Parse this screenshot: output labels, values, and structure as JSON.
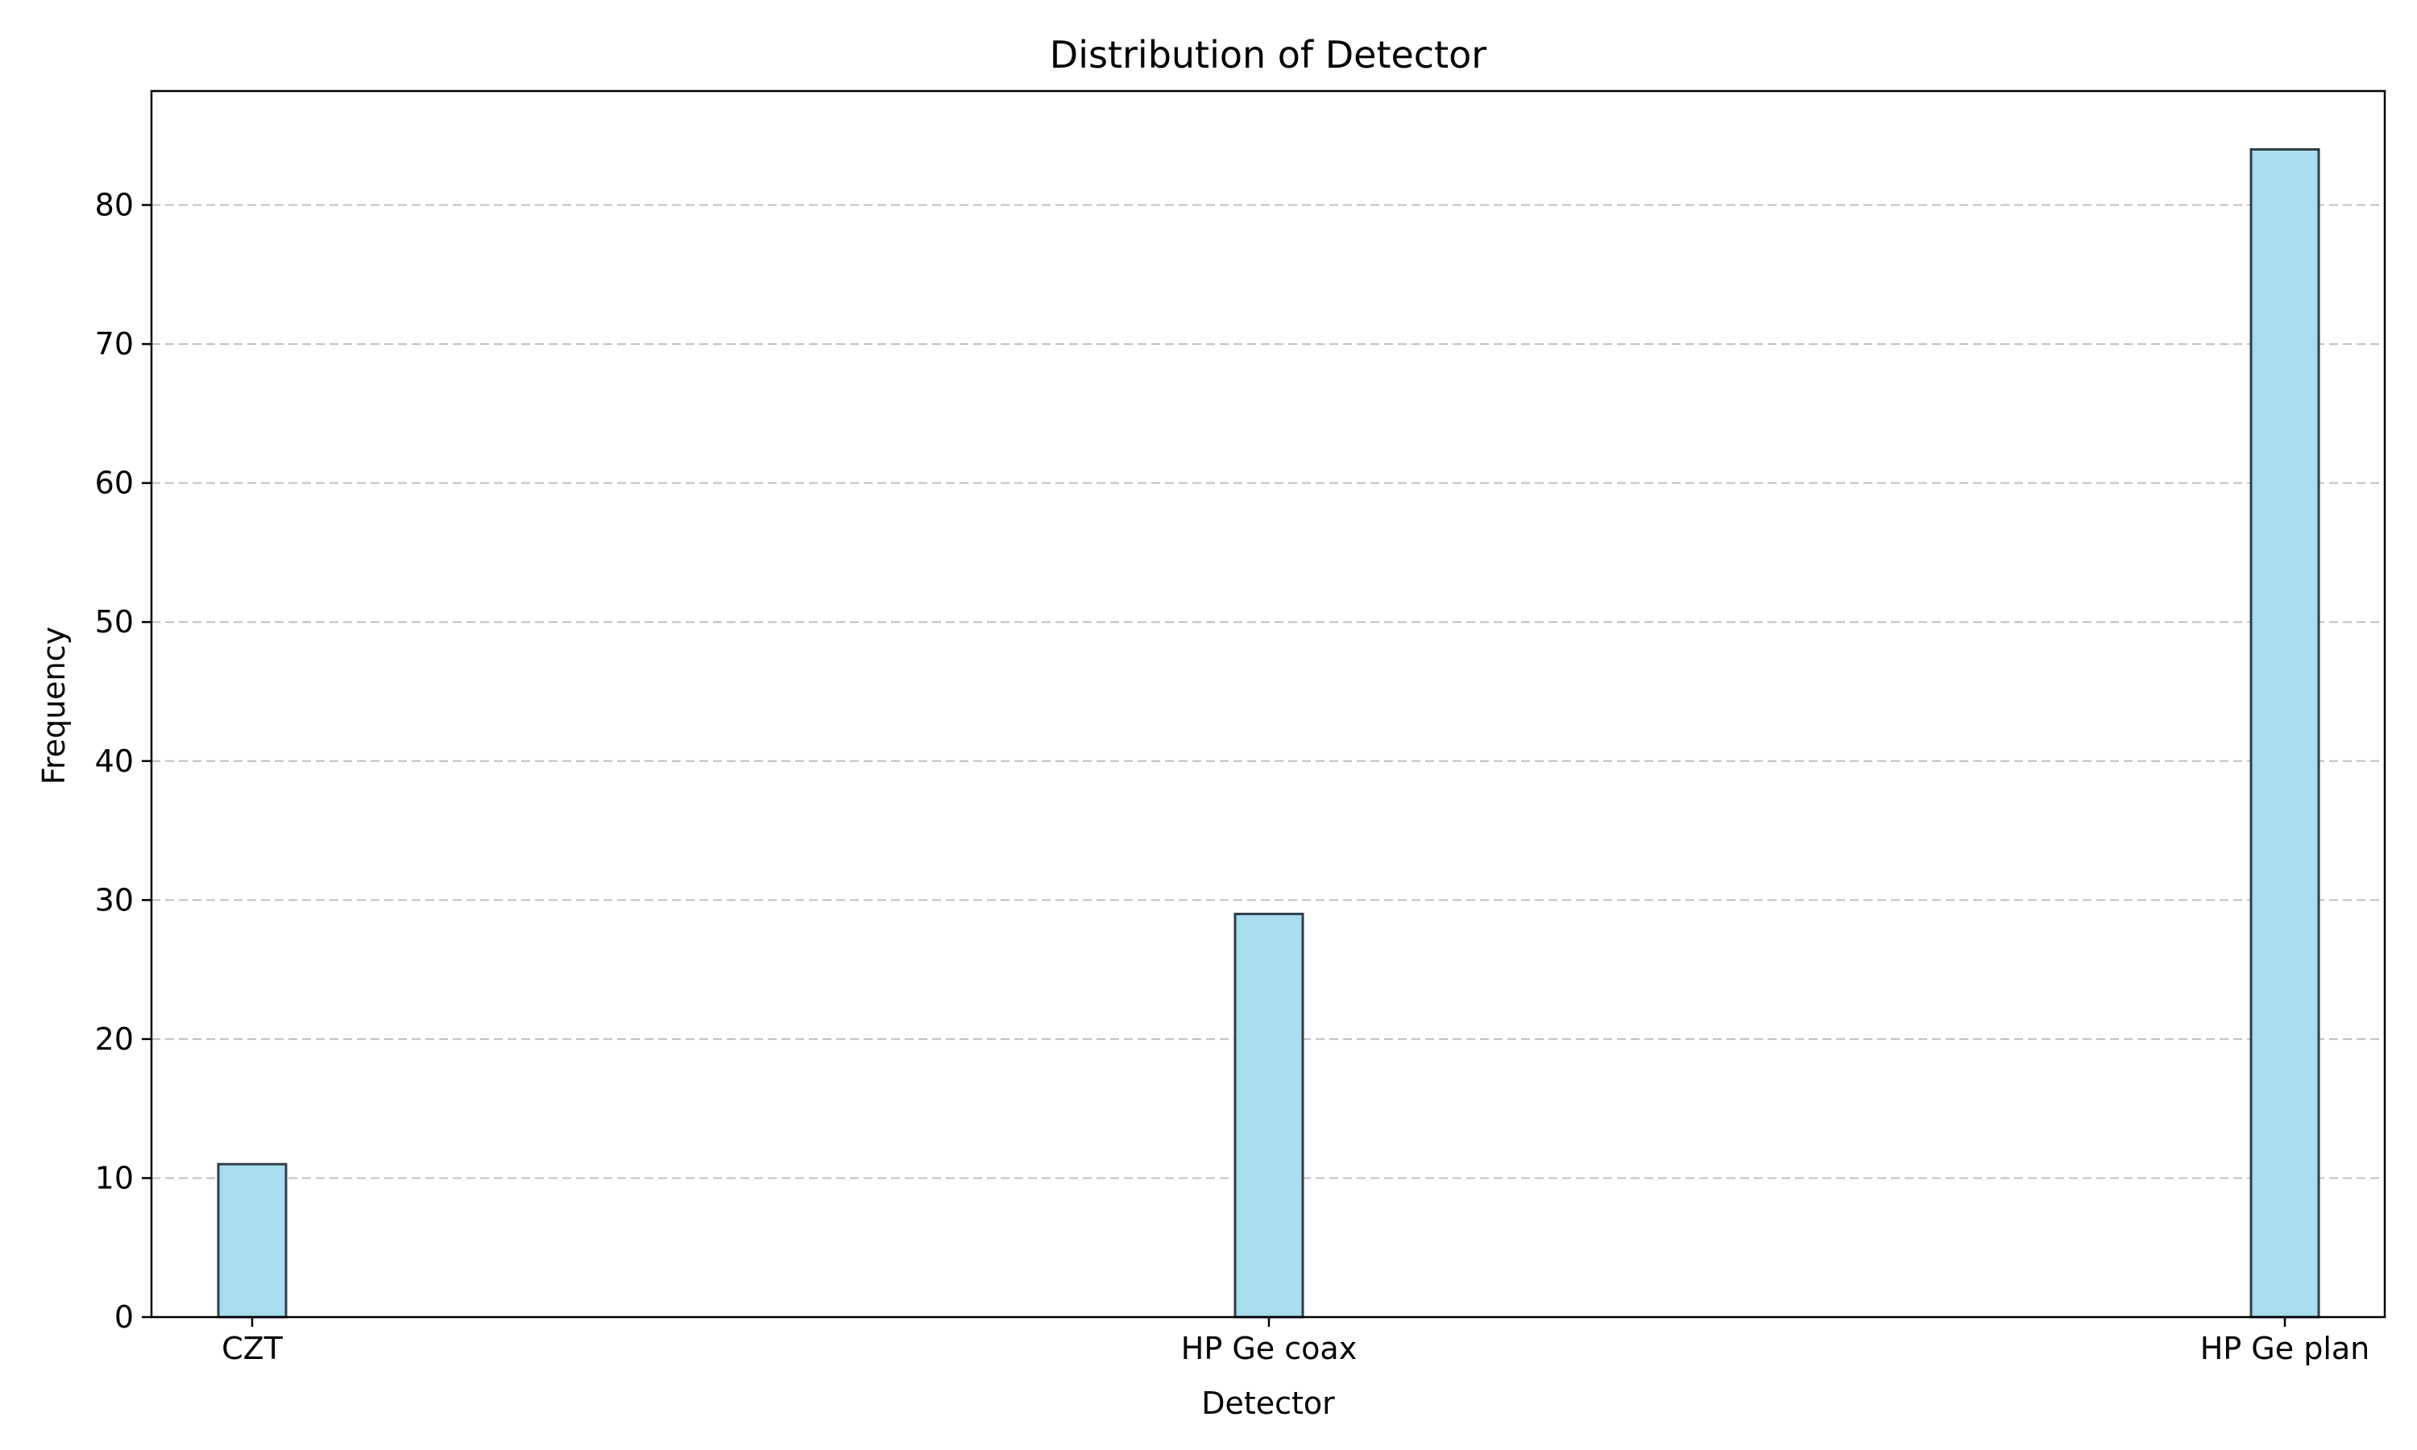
{
  "chart_data": {
    "type": "bar",
    "title": "Distribution of Detector",
    "xlabel": "Detector",
    "ylabel": "Frequency",
    "categories": [
      "CZT",
      "HP Ge coax",
      "HP Ge plan"
    ],
    "values": [
      11,
      29,
      84
    ],
    "ylim": [
      0,
      88.2
    ],
    "yticks": [
      0,
      10,
      20,
      30,
      40,
      50,
      60,
      70,
      80
    ],
    "grid": "y-dashed",
    "bar_color": "#a8dcee",
    "bar_edge_color": "#2f3e46"
  }
}
